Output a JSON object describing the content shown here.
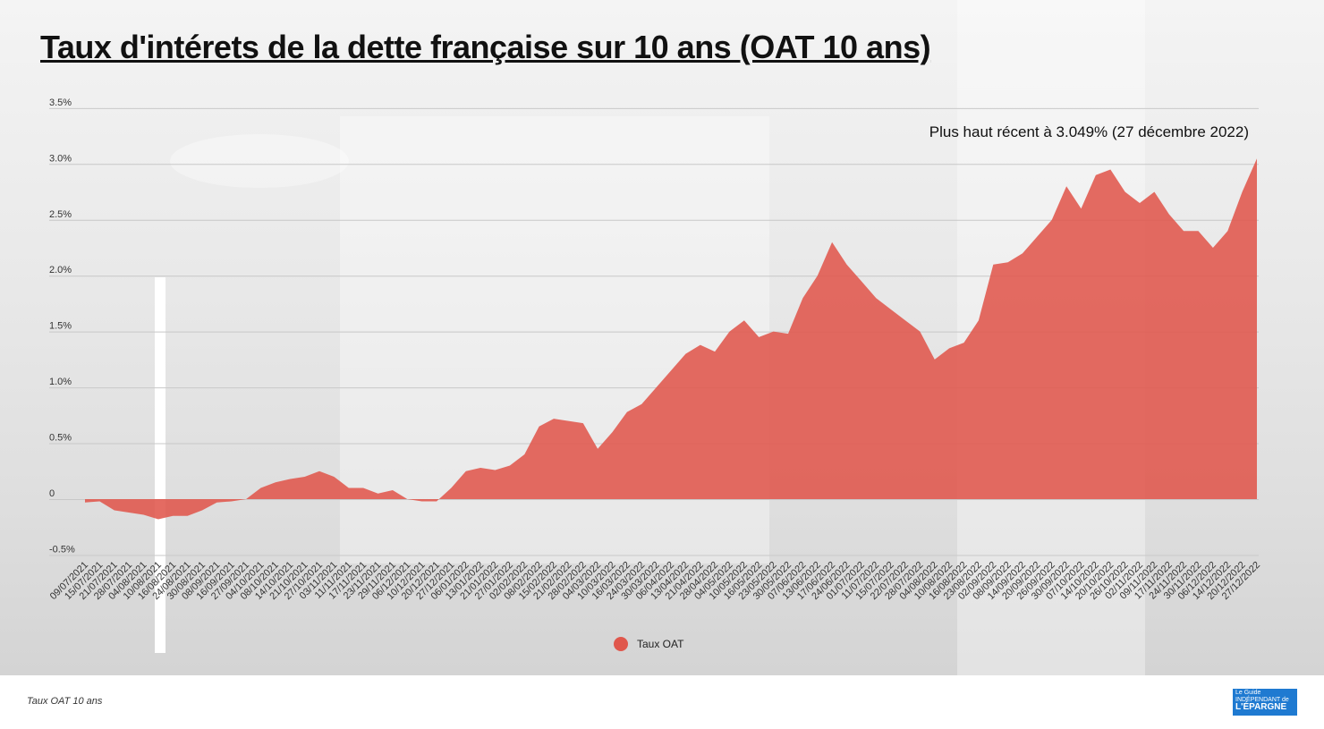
{
  "chart_data": {
    "type": "area",
    "title": "Taux d'intérets de la dette française sur 10 ans (OAT 10 ans)",
    "annotation": "Plus haut récent à 3.049% (27 décembre 2022)",
    "legend": {
      "label": "Taux OAT",
      "placement": "bottom-center"
    },
    "color": "#e0574c",
    "ylim": [
      -0.5,
      3.5
    ],
    "yticks": [
      -0.5,
      0,
      0.5,
      1.0,
      1.5,
      2.0,
      2.5,
      3.0,
      3.5
    ],
    "ytick_labels": [
      "-0.5%",
      "0",
      "0.5%",
      "1.0%",
      "1.5%",
      "2.0%",
      "2.5%",
      "3.0%",
      "3.5%"
    ],
    "grid": true,
    "x": [
      "09/07/2021",
      "15/07/2021",
      "21/07/2021",
      "28/07/2021",
      "04/08/2021",
      "10/08/2021",
      "16/08/2021",
      "24/08/2021",
      "30/08/2021",
      "08/09/2021",
      "16/09/2021",
      "27/09/2021",
      "04/10/2021",
      "08/10/2021",
      "14/10/2021",
      "21/10/2021",
      "27/10/2021",
      "03/11/2021",
      "11/11/2021",
      "17/11/2021",
      "23/11/2021",
      "29/11/2021",
      "06/12/2021",
      "10/12/2021",
      "20/12/2021",
      "27/12/2021",
      "06/01/2022",
      "13/01/2022",
      "21/01/2022",
      "27/01/2022",
      "02/02/2022",
      "08/02/2022",
      "15/02/2022",
      "21/02/2022",
      "28/02/2022",
      "04/03/2022",
      "10/03/2022",
      "16/03/2022",
      "24/03/2022",
      "30/03/2022",
      "06/04/2022",
      "13/04/2022",
      "21/04/2022",
      "28/04/2022",
      "04/05/2022",
      "10/05/2022",
      "16/05/2022",
      "23/05/2022",
      "30/05/2022",
      "07/06/2022",
      "13/06/2022",
      "17/06/2022",
      "24/06/2022",
      "01/07/2022",
      "11/07/2022",
      "15/07/2022",
      "22/07/2022",
      "28/07/2022",
      "04/08/2022",
      "10/08/2022",
      "16/08/2022",
      "23/08/2022",
      "02/09/2022",
      "08/09/2022",
      "14/09/2022",
      "20/09/2022",
      "26/09/2022",
      "30/09/2022",
      "07/10/2022",
      "14/10/2022",
      "20/10/2022",
      "26/10/2022",
      "02/11/2022",
      "09/11/2022",
      "17/11/2022",
      "24/11/2022",
      "30/11/2022",
      "06/12/2022",
      "14/12/2022",
      "20/12/2022",
      "27/12/2022"
    ],
    "series": [
      {
        "name": "Taux OAT",
        "values": [
          -0.03,
          -0.02,
          -0.1,
          -0.12,
          -0.14,
          -0.18,
          -0.15,
          -0.15,
          -0.1,
          -0.03,
          -0.02,
          0.0,
          0.1,
          0.15,
          0.18,
          0.2,
          0.25,
          0.2,
          0.1,
          0.1,
          0.05,
          0.08,
          0.0,
          -0.02,
          -0.02,
          0.1,
          0.25,
          0.28,
          0.26,
          0.3,
          0.4,
          0.65,
          0.72,
          0.7,
          0.68,
          0.45,
          0.6,
          0.78,
          0.85,
          1.0,
          1.15,
          1.3,
          1.38,
          1.32,
          1.5,
          1.6,
          1.45,
          1.5,
          1.48,
          1.8,
          2.0,
          2.3,
          2.1,
          1.95,
          1.8,
          1.7,
          1.6,
          1.5,
          1.25,
          1.35,
          1.4,
          1.6,
          2.1,
          2.12,
          2.2,
          2.35,
          2.5,
          2.8,
          2.6,
          2.9,
          2.95,
          2.75,
          2.65,
          2.75,
          2.55,
          2.4,
          2.4,
          2.25,
          2.4,
          2.75,
          3.049
        ]
      }
    ]
  },
  "footer": {
    "caption": "Taux OAT 10 ans"
  },
  "logo": {
    "line1": "Le Guide",
    "line2": "INDÉPENDANT de",
    "line3": "L'ÉPARGNE"
  }
}
